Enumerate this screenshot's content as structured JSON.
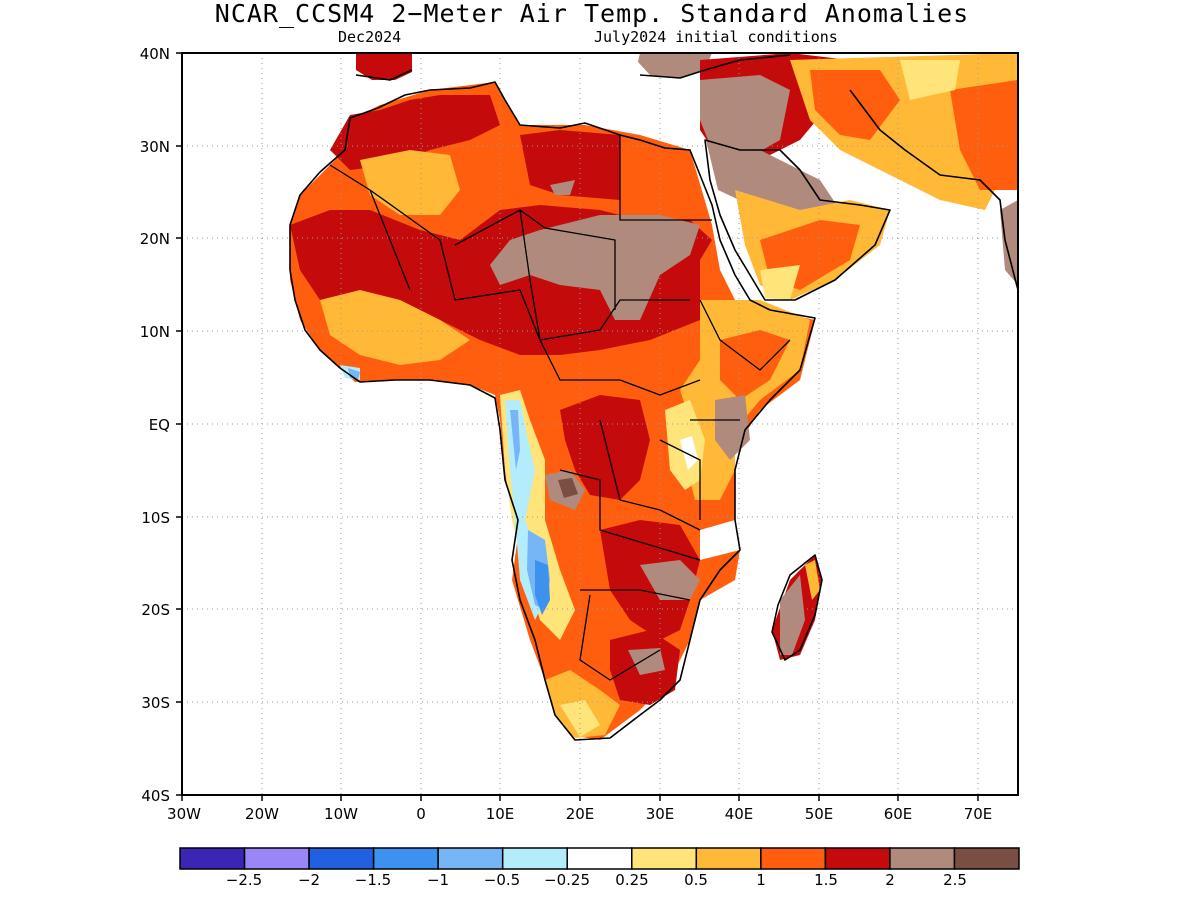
{
  "title": "NCAR_CCSM4 2−Meter Air Temp. Standard Anomalies",
  "subtitle_left": "Dec2024",
  "subtitle_right": "July2024 initial conditions",
  "map": {
    "lon_range": [
      -30,
      75
    ],
    "lat_range": [
      -40,
      40
    ],
    "y_ticks": [
      "40N",
      "30N",
      "20N",
      "10N",
      "EQ",
      "10S",
      "20S",
      "30S",
      "40S"
    ],
    "x_ticks": [
      "30W",
      "20W",
      "10W",
      "0",
      "10E",
      "20E",
      "30E",
      "40E",
      "50E",
      "60E",
      "70E"
    ],
    "grid": "dotted"
  },
  "legend": {
    "colors": [
      "#3b26b4",
      "#9a86f6",
      "#1f61e0",
      "#3d92ef",
      "#76b6f6",
      "#b3ecfa",
      "#ffffff",
      "#ffe47a",
      "#ffb937",
      "#ff5e0f",
      "#c40a0a",
      "#b08a7d",
      "#7a4e43"
    ],
    "labels": [
      "−2.5",
      "−2",
      "−1.5",
      "−1",
      "−0.5",
      "−0.25",
      "0.25",
      "0.5",
      "1",
      "1.5",
      "2",
      "2.5"
    ]
  }
}
